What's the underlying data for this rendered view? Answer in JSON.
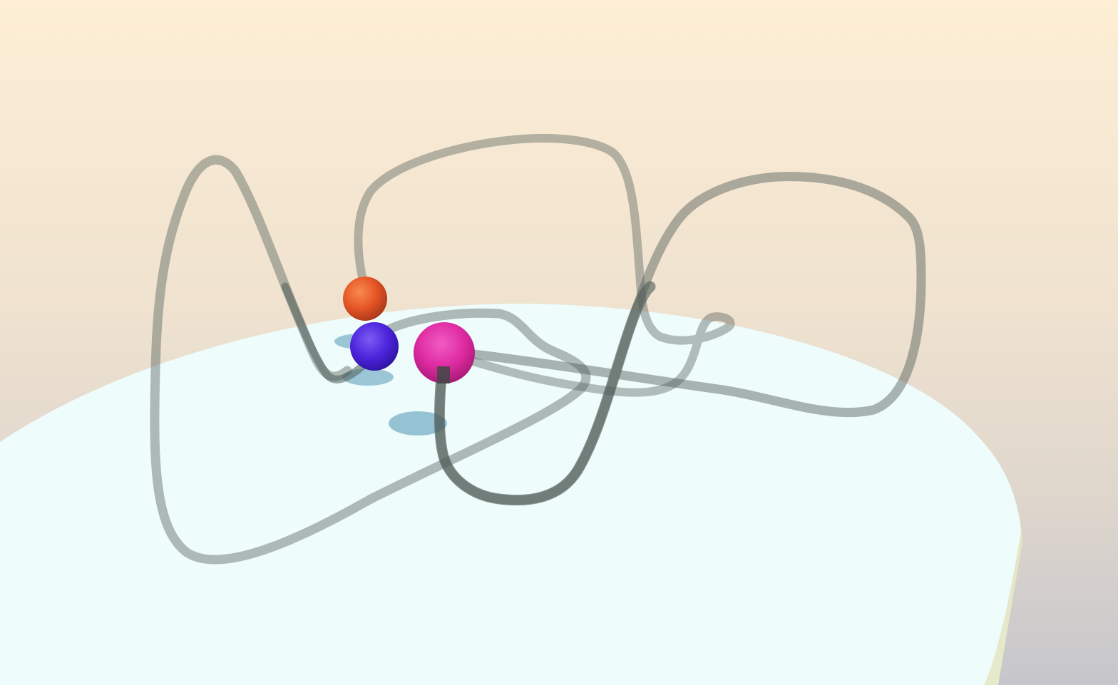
{
  "scene": {
    "background_top_color": "#fdeed5",
    "background_mid_color": "#e8ddcc",
    "background_bottom_color": "#c9c9cd",
    "platform_color": "#effcfc",
    "platform_edge_color": "#f4f7d8",
    "path_color": "#4f5c57",
    "shadow_color": "#7fb4c9"
  },
  "balls": [
    {
      "id": "orange",
      "color": "#e8572a"
    },
    {
      "id": "blue",
      "color": "#4a22d8"
    },
    {
      "id": "magenta",
      "color": "#e0259f"
    }
  ]
}
